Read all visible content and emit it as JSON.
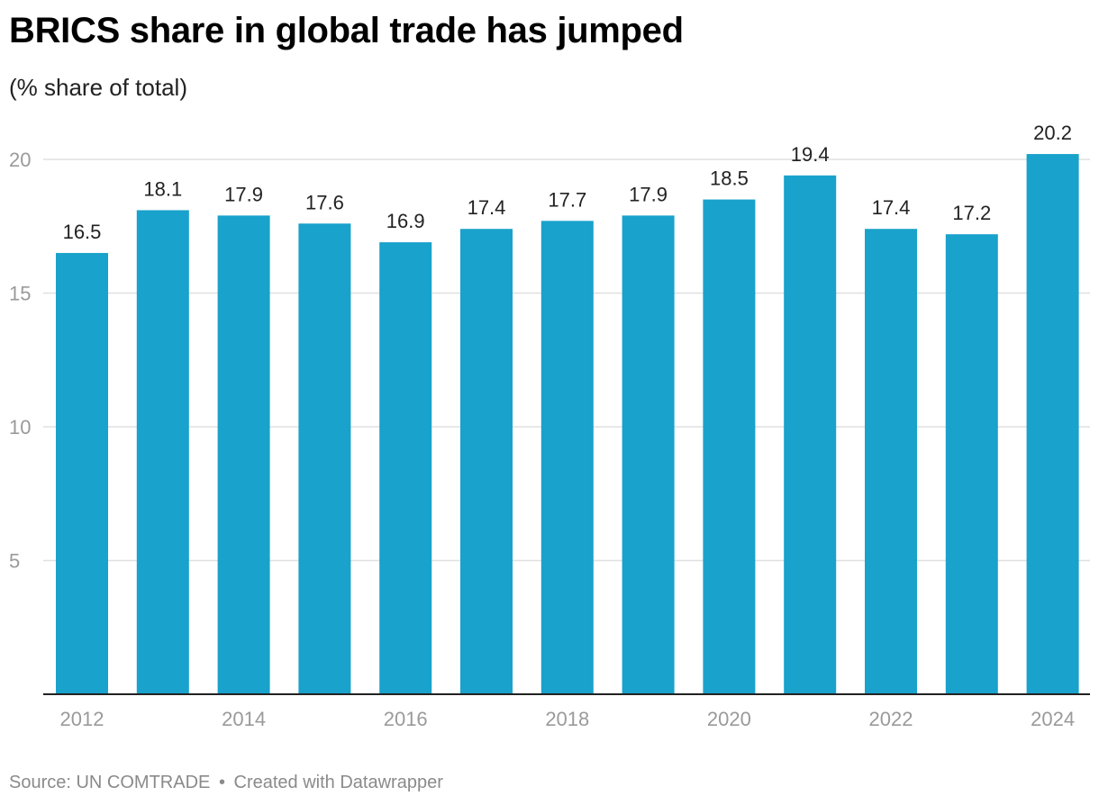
{
  "header": {
    "title": "BRICS share in global trade has jumped",
    "subtitle": "(% share of total)"
  },
  "footer": {
    "source": "Source: UN COMTRADE",
    "separator": "•",
    "credit": "Created with Datawrapper"
  },
  "colors": {
    "bar": "#19a2cb",
    "gridline": "#e0e0e0",
    "axis": "#222222",
    "tick_text": "#9a9a9a",
    "value_text": "#222222"
  },
  "chart_data": {
    "type": "bar",
    "title": "BRICS share in global trade has jumped",
    "subtitle": "(% share of total)",
    "xlabel": "",
    "ylabel": "",
    "categories": [
      "2012",
      "2013",
      "2014",
      "2015",
      "2016",
      "2017",
      "2018",
      "2019",
      "2020",
      "2021",
      "2022",
      "2023",
      "2024"
    ],
    "values": [
      16.5,
      18.1,
      17.9,
      17.6,
      16.9,
      17.4,
      17.7,
      17.9,
      18.5,
      19.4,
      17.4,
      17.2,
      20.2
    ],
    "value_labels": [
      "16.5",
      "18.1",
      "17.9",
      "17.6",
      "16.9",
      "17.4",
      "17.7",
      "17.9",
      "18.5",
      "19.4",
      "17.4",
      "17.2",
      "20.2"
    ],
    "x_tick_labels": [
      "2012",
      "",
      "2014",
      "",
      "2016",
      "",
      "2018",
      "",
      "2020",
      "",
      "2022",
      "",
      "2024"
    ],
    "y_ticks": [
      5,
      10,
      15,
      20
    ],
    "y_tick_labels": [
      "5",
      "10",
      "15",
      "20"
    ],
    "ylim": [
      0,
      20.2
    ],
    "grid": true,
    "legend": "none"
  }
}
